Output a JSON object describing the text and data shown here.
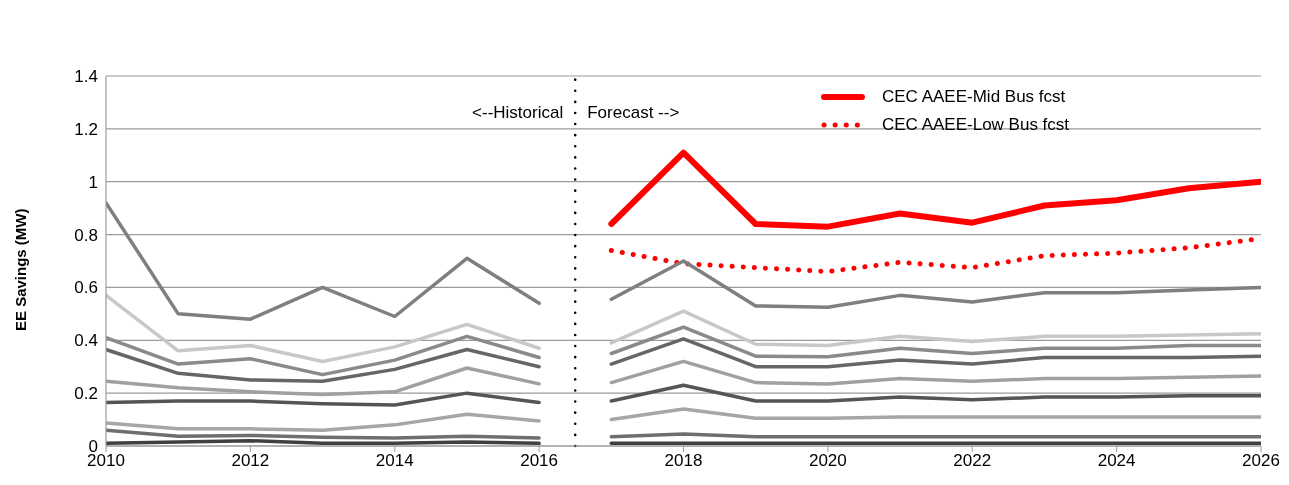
{
  "chart_data": {
    "type": "line",
    "ylabel": "EE Savings (MW)",
    "annotations": [
      "<--Historical",
      "Forecast -->"
    ],
    "xlim": [
      2010,
      2026
    ],
    "xticks": [
      2010,
      2012,
      2014,
      2016,
      2018,
      2020,
      2022,
      2024,
      2026
    ],
    "ylim": [
      0,
      1.4
    ],
    "yticks": [
      0,
      0.2,
      0.4,
      0.6,
      0.8,
      1,
      1.2,
      1.4
    ],
    "grid": "y",
    "legend": "top right",
    "marker": "none",
    "line_style": "solid",
    "ref_lines": [
      {
        "axis": "x",
        "value": 2016.5,
        "label": null,
        "color": "#000000",
        "line_style": "dotted"
      }
    ],
    "series": [
      {
        "name": "CEC AAEE-Mid Bus fcst",
        "color": "#ff0000",
        "x": [
          2017,
          2018,
          2019,
          2020,
          2021,
          2022,
          2023,
          2024,
          2025,
          2026
        ],
        "values": [
          0.84,
          1.11,
          0.84,
          0.83,
          0.88,
          0.845,
          0.91,
          0.93,
          0.975,
          1.0
        ]
      },
      {
        "name": "CEC AAEE-Low Bus fcst",
        "color": "#ff0000",
        "line_style": "dotted",
        "x": [
          2017,
          2018,
          2019,
          2020,
          2021,
          2022,
          2023,
          2024,
          2025,
          2026
        ],
        "values": [
          0.74,
          0.69,
          0.675,
          0.66,
          0.695,
          0.675,
          0.72,
          0.73,
          0.75,
          0.785
        ]
      },
      {
        "color": "#7f7f7f",
        "x": [
          2010,
          2011,
          2012,
          2013,
          2014,
          2015,
          2016
        ],
        "values": [
          0.92,
          0.5,
          0.48,
          0.6,
          0.49,
          0.71,
          0.54
        ]
      },
      {
        "color": "#c8c8c8",
        "x": [
          2010,
          2011,
          2012,
          2013,
          2014,
          2015,
          2016
        ],
        "values": [
          0.57,
          0.36,
          0.38,
          0.32,
          0.375,
          0.46,
          0.37
        ]
      },
      {
        "color": "#8a8a8a",
        "x": [
          2010,
          2011,
          2012,
          2013,
          2014,
          2015,
          2016
        ],
        "values": [
          0.41,
          0.31,
          0.33,
          0.27,
          0.325,
          0.415,
          0.335
        ]
      },
      {
        "color": "#666666",
        "x": [
          2010,
          2011,
          2012,
          2013,
          2014,
          2015,
          2016
        ],
        "values": [
          0.365,
          0.275,
          0.25,
          0.245,
          0.29,
          0.365,
          0.3
        ]
      },
      {
        "color": "#a0a0a0",
        "x": [
          2010,
          2011,
          2012,
          2013,
          2014,
          2015,
          2016
        ],
        "values": [
          0.245,
          0.22,
          0.205,
          0.195,
          0.205,
          0.295,
          0.235
        ]
      },
      {
        "color": "#555555",
        "x": [
          2010,
          2011,
          2012,
          2013,
          2014,
          2015,
          2016
        ],
        "values": [
          0.165,
          0.17,
          0.17,
          0.16,
          0.155,
          0.2,
          0.165
        ]
      },
      {
        "color": "#a6a6a6",
        "x": [
          2010,
          2011,
          2012,
          2013,
          2014,
          2015,
          2016
        ],
        "values": [
          0.087,
          0.065,
          0.065,
          0.06,
          0.08,
          0.12,
          0.095
        ]
      },
      {
        "color": "#6e6e6e",
        "x": [
          2010,
          2011,
          2012,
          2013,
          2014,
          2015,
          2016
        ],
        "values": [
          0.06,
          0.037,
          0.04,
          0.033,
          0.03,
          0.037,
          0.03
        ]
      },
      {
        "color": "#404040",
        "x": [
          2010,
          2011,
          2012,
          2013,
          2014,
          2015,
          2016
        ],
        "values": [
          0.01,
          0.015,
          0.02,
          0.01,
          0.01,
          0.015,
          0.01
        ]
      },
      {
        "color": "#7f7f7f",
        "x": [
          2017,
          2018,
          2019,
          2020,
          2021,
          2022,
          2023,
          2024,
          2025,
          2026
        ],
        "values": [
          0.555,
          0.7,
          0.53,
          0.525,
          0.57,
          0.545,
          0.58,
          0.58,
          0.59,
          0.6
        ]
      },
      {
        "color": "#c8c8c8",
        "x": [
          2017,
          2018,
          2019,
          2020,
          2021,
          2022,
          2023,
          2024,
          2025,
          2026
        ],
        "values": [
          0.39,
          0.51,
          0.385,
          0.38,
          0.415,
          0.395,
          0.415,
          0.415,
          0.42,
          0.425
        ]
      },
      {
        "color": "#8a8a8a",
        "x": [
          2017,
          2018,
          2019,
          2020,
          2021,
          2022,
          2023,
          2024,
          2025,
          2026
        ],
        "values": [
          0.35,
          0.45,
          0.34,
          0.338,
          0.37,
          0.35,
          0.37,
          0.37,
          0.38,
          0.38
        ]
      },
      {
        "color": "#666666",
        "x": [
          2017,
          2018,
          2019,
          2020,
          2021,
          2022,
          2023,
          2024,
          2025,
          2026
        ],
        "values": [
          0.31,
          0.405,
          0.3,
          0.3,
          0.325,
          0.31,
          0.335,
          0.335,
          0.335,
          0.34
        ]
      },
      {
        "color": "#a0a0a0",
        "x": [
          2017,
          2018,
          2019,
          2020,
          2021,
          2022,
          2023,
          2024,
          2025,
          2026
        ],
        "values": [
          0.24,
          0.32,
          0.24,
          0.235,
          0.255,
          0.245,
          0.255,
          0.255,
          0.26,
          0.265
        ]
      },
      {
        "color": "#555555",
        "x": [
          2017,
          2018,
          2019,
          2020,
          2021,
          2022,
          2023,
          2024,
          2025,
          2026
        ],
        "values": [
          0.17,
          0.23,
          0.17,
          0.17,
          0.185,
          0.175,
          0.185,
          0.185,
          0.19,
          0.19
        ]
      },
      {
        "color": "#a6a6a6",
        "x": [
          2017,
          2018,
          2019,
          2020,
          2021,
          2022,
          2023,
          2024,
          2025,
          2026
        ],
        "values": [
          0.1,
          0.14,
          0.105,
          0.105,
          0.11,
          0.11,
          0.11,
          0.11,
          0.11,
          0.11
        ]
      },
      {
        "color": "#6e6e6e",
        "x": [
          2017,
          2018,
          2019,
          2020,
          2021,
          2022,
          2023,
          2024,
          2025,
          2026
        ],
        "values": [
          0.035,
          0.045,
          0.035,
          0.035,
          0.035,
          0.035,
          0.035,
          0.035,
          0.035,
          0.035
        ]
      },
      {
        "color": "#404040",
        "x": [
          2017,
          2018,
          2019,
          2020,
          2021,
          2022,
          2023,
          2024,
          2025,
          2026
        ],
        "values": [
          0.01,
          0.01,
          0.01,
          0.01,
          0.01,
          0.01,
          0.01,
          0.01,
          0.01,
          0.01
        ]
      }
    ]
  }
}
